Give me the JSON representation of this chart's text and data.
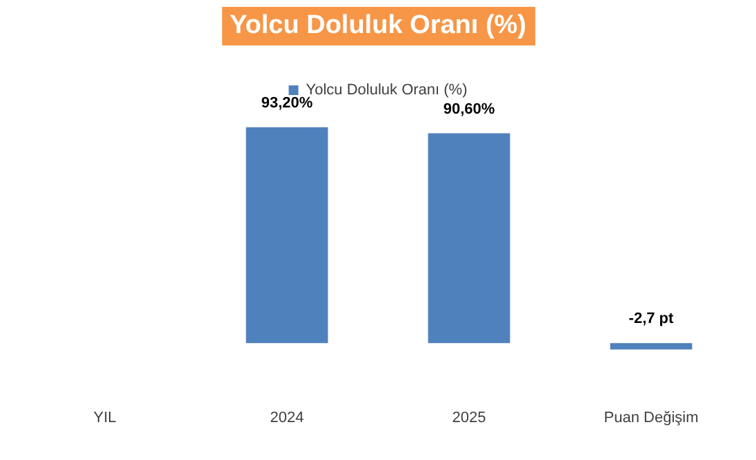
{
  "chart_data": {
    "type": "bar",
    "title": "Yolcu Doluluk Oranı (%)",
    "categories": [
      "YIL",
      "2024",
      "2025",
      "Puan Değişim"
    ],
    "series": [
      {
        "name": "Yolcu Doluluk Oranı (%)",
        "color": "#4f81bd",
        "values": [
          null,
          93.2,
          90.6,
          -2.7
        ],
        "value_labels": [
          null,
          "93,20%",
          "90,60%",
          "-2,7 pt"
        ]
      }
    ],
    "legend": "top",
    "grid": false
  }
}
